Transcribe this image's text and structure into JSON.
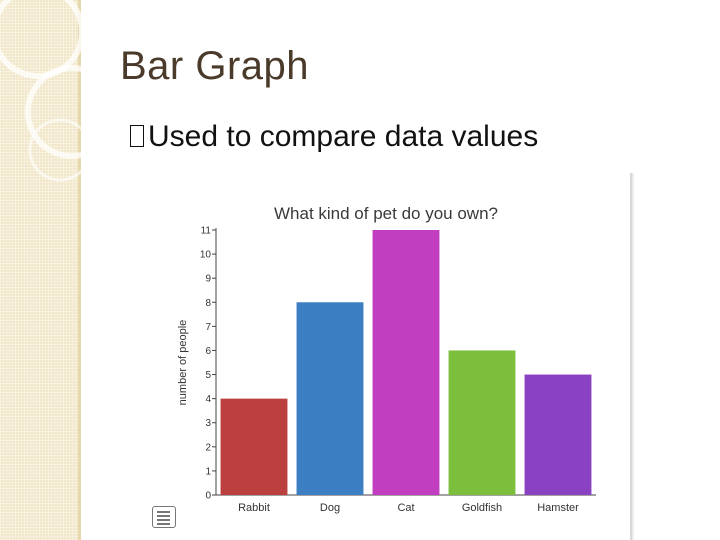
{
  "slide": {
    "title": "Bar Graph",
    "bullet": "Used to compare data values"
  },
  "icons": {
    "bullet": "box-bullet-icon",
    "notes": "notes-icon"
  },
  "colors": {
    "title": "#4a3a2a",
    "band": "#f1e6c8"
  },
  "chart_data": {
    "type": "bar",
    "title": "What kind of pet do you own?",
    "xlabel": "",
    "ylabel": "number of people",
    "categories": [
      "Rabbit",
      "Dog",
      "Cat",
      "Goldfish",
      "Hamster"
    ],
    "values": [
      4,
      8,
      11,
      6,
      5
    ],
    "colors": [
      "#bc3f3f",
      "#3c7ec2",
      "#c23ec0",
      "#7bbf3d",
      "#8a42c2"
    ],
    "ylim": [
      0,
      11
    ],
    "yticks": [
      0,
      1,
      2,
      3,
      4,
      5,
      6,
      7,
      8,
      9,
      10,
      11
    ],
    "grid": false,
    "legend": "none"
  }
}
